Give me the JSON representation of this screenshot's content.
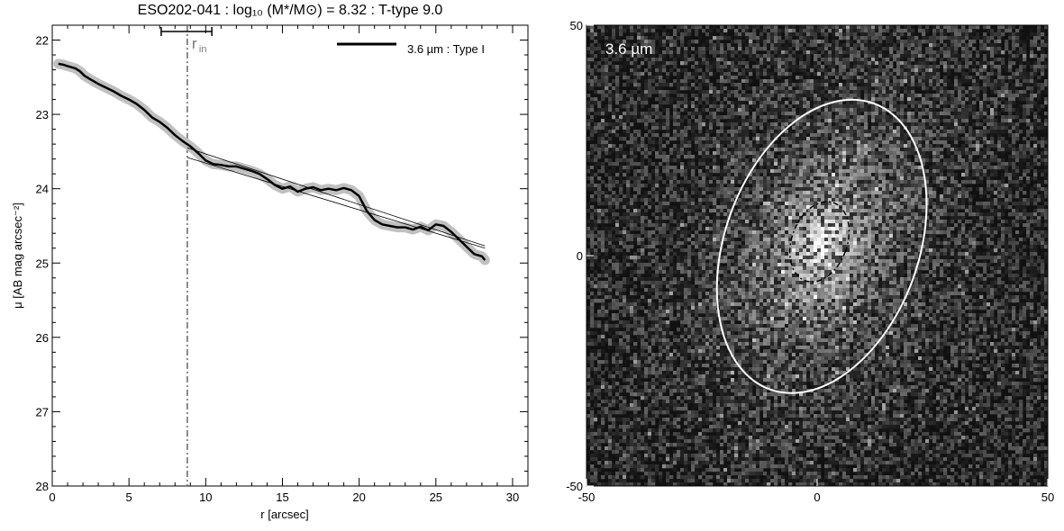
{
  "chart_data": [
    {
      "type": "line",
      "title": "ESO202-041 : log₁₀ (M*/M⊙) = 8.32 : T-type 9.0",
      "xlabel": "r [arcsec]",
      "ylabel": "μ [AB mag arcsec⁻²]",
      "xlim": [
        0,
        31
      ],
      "ylim": [
        28,
        21.8
      ],
      "y_inverted": true,
      "xticks": [
        "0",
        "5",
        "10",
        "15",
        "20",
        "25",
        "30"
      ],
      "yticks": [
        "22",
        "23",
        "24",
        "25",
        "26",
        "27",
        "28"
      ],
      "legend": {
        "label": "3.6 µm : Type I",
        "position": "top-right"
      },
      "r_in_label": "r",
      "r_in_sub": "in",
      "r_in": 8.8,
      "r_in_range": [
        7.1,
        10.4
      ],
      "profile": {
        "x": [
          0.4,
          0.7,
          1.0,
          1.5,
          1.8,
          2.1,
          2.5,
          3.0,
          3.5,
          4.0,
          4.5,
          5.0,
          5.5,
          6.0,
          6.5,
          7.0,
          7.5,
          8.0,
          8.5,
          9.0,
          9.5,
          10.0,
          10.5,
          11.0,
          11.5,
          12.0,
          12.5,
          13.0,
          13.5,
          14.0,
          14.5,
          15.0,
          15.5,
          16.0,
          16.5,
          17.0,
          17.5,
          18.0,
          18.5,
          19.0,
          19.5,
          20.0,
          20.5,
          21.0,
          21.5,
          22.0,
          22.5,
          23.0,
          23.5,
          24.0,
          24.5,
          25.0,
          25.5,
          26.0,
          26.5,
          27.0,
          27.5,
          28.0,
          28.2
        ],
        "y": [
          22.32,
          22.33,
          22.35,
          22.38,
          22.42,
          22.48,
          22.53,
          22.59,
          22.64,
          22.69,
          22.75,
          22.8,
          22.86,
          22.94,
          23.04,
          23.1,
          23.18,
          23.28,
          23.36,
          23.43,
          23.52,
          23.62,
          23.67,
          23.68,
          23.7,
          23.7,
          23.73,
          23.76,
          23.8,
          23.87,
          23.95,
          24.0,
          23.97,
          24.04,
          24.0,
          23.98,
          24.02,
          24.0,
          24.02,
          23.99,
          24.02,
          24.1,
          24.3,
          24.42,
          24.48,
          24.5,
          24.52,
          24.52,
          24.55,
          24.51,
          24.56,
          24.48,
          24.5,
          24.58,
          24.68,
          24.78,
          24.88,
          24.91,
          24.96
        ]
      },
      "fit": {
        "x": [
          8.8,
          28.2
        ],
        "y": [
          23.58,
          24.8
        ]
      },
      "fit_upper": {
        "x": [
          8.8,
          28.2
        ],
        "y": [
          23.45,
          24.77
        ]
      }
    },
    {
      "type": "heatmap",
      "label": "3.6 µm",
      "xlim": [
        -50,
        50
      ],
      "ylim": [
        -50,
        50
      ],
      "xticks": [
        "-50",
        "0",
        "50"
      ],
      "yticks": [
        "-50",
        "0",
        "50"
      ],
      "colormap": "grayscale",
      "outer_ellipse": {
        "cx": 1.0,
        "cy": 2.0,
        "rx": 21.0,
        "ry": 33.0,
        "angle_deg": 20
      },
      "inner_ellipse": {
        "cx": 0.5,
        "cy": 3.0,
        "rx": 6.0,
        "ry": 9.0,
        "angle_deg": 20
      }
    }
  ]
}
